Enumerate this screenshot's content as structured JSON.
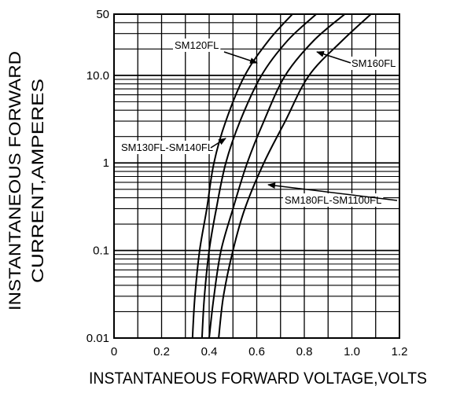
{
  "chart_data": {
    "type": "line",
    "xlabel": "INSTANTANEOUS FORWARD VOLTAGE,VOLTS",
    "ylabel": [
      "INSTANTANEOUS FORWARD",
      "CURRENT,AMPERES"
    ],
    "x_scale": "linear",
    "y_scale": "log",
    "xlim": [
      0,
      1.2
    ],
    "ylim": [
      0.01,
      50
    ],
    "x_ticks": [
      "0",
      "0.2",
      "0.4",
      "0.6",
      "0.8",
      "1.0",
      "1.2"
    ],
    "x_tick_values": [
      0,
      0.2,
      0.4,
      0.6,
      0.8,
      1.0,
      1.2
    ],
    "y_ticks": [
      "0.01",
      "0.1",
      "1",
      "10.0",
      "50"
    ],
    "y_tick_values": [
      0.01,
      0.1,
      1,
      10,
      50
    ],
    "grid": true,
    "series": [
      {
        "name": "SM120FL",
        "points": [
          [
            0.33,
            0.01
          ],
          [
            0.34,
            0.03
          ],
          [
            0.36,
            0.1
          ],
          [
            0.39,
            0.3
          ],
          [
            0.42,
            1
          ],
          [
            0.47,
            3
          ],
          [
            0.55,
            10
          ],
          [
            0.65,
            25
          ],
          [
            0.75,
            50
          ]
        ]
      },
      {
        "name": "SM130FL-SM140FL",
        "points": [
          [
            0.37,
            0.01
          ],
          [
            0.38,
            0.03
          ],
          [
            0.4,
            0.1
          ],
          [
            0.43,
            0.3
          ],
          [
            0.47,
            1
          ],
          [
            0.53,
            3
          ],
          [
            0.62,
            10
          ],
          [
            0.73,
            25
          ],
          [
            0.85,
            50
          ]
        ]
      },
      {
        "name": "SM160FL",
        "points": [
          [
            0.4,
            0.01
          ],
          [
            0.42,
            0.03
          ],
          [
            0.45,
            0.1
          ],
          [
            0.5,
            0.3
          ],
          [
            0.56,
            1
          ],
          [
            0.63,
            3
          ],
          [
            0.72,
            10
          ],
          [
            0.84,
            25
          ],
          [
            0.97,
            50
          ]
        ]
      },
      {
        "name": "SM180FL-SM1100FL",
        "points": [
          [
            0.44,
            0.01
          ],
          [
            0.46,
            0.03
          ],
          [
            0.5,
            0.1
          ],
          [
            0.55,
            0.3
          ],
          [
            0.63,
            1
          ],
          [
            0.72,
            3
          ],
          [
            0.82,
            10
          ],
          [
            0.96,
            25
          ],
          [
            1.08,
            50
          ]
        ]
      }
    ],
    "annotations": [
      {
        "label": "SM120FL",
        "series": "SM120FL"
      },
      {
        "label": "SM160FL",
        "series": "SM160FL"
      },
      {
        "label": "SM130FL-SM140FL",
        "series": "SM130FL-SM140FL"
      },
      {
        "label": "SM180FL-SM1100FL",
        "series": "SM180FL-SM1100FL"
      }
    ]
  }
}
